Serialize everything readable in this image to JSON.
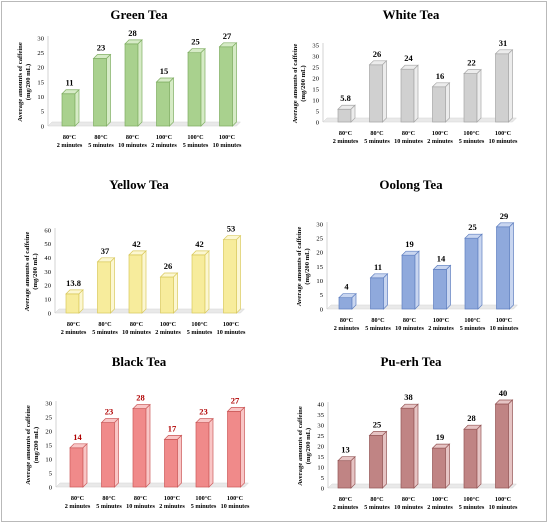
{
  "chart_data": [
    {
      "type": "bar",
      "title": "Green Tea",
      "ylabel": "Average amounts of caffeine (mg/200 mL)",
      "categories": [
        [
          "80°C",
          "2 minutes"
        ],
        [
          "80°C",
          "5 minutes"
        ],
        [
          "80°C",
          "10 minutes"
        ],
        [
          "100°C",
          "2 minutes"
        ],
        [
          "100°C",
          "5 minutes"
        ],
        [
          "100°C",
          "10 minutes"
        ]
      ],
      "values": [
        11,
        23,
        28,
        15,
        25,
        27
      ],
      "labels": [
        "11",
        "23",
        "28",
        "15",
        "25",
        "27"
      ],
      "ylim": [
        0,
        30
      ],
      "yticks": [
        0,
        5,
        10,
        15,
        20,
        25,
        30
      ],
      "color": "#a9d18e",
      "dark": "#7fae62",
      "light": "#d6ebc6",
      "label_color": "#000000"
    },
    {
      "type": "bar",
      "title": "White Tea",
      "ylabel": "Average amounts of caffeine (mg/200 mL)",
      "categories": [
        [
          "80°C",
          "2 minutes"
        ],
        [
          "80°C",
          "5 minutes"
        ],
        [
          "80°C",
          "10 minutes"
        ],
        [
          "100°C",
          "2 minutes"
        ],
        [
          "100°C",
          "5 minutes"
        ],
        [
          "100°C",
          "10 minutes"
        ]
      ],
      "values": [
        5.8,
        26,
        24,
        16,
        22,
        31
      ],
      "labels": [
        "5.8",
        "26",
        "24",
        "16",
        "22",
        "31"
      ],
      "ylim": [
        0,
        35
      ],
      "yticks": [
        0,
        5,
        10,
        15,
        20,
        25,
        30,
        35
      ],
      "color": "#d0d0d0",
      "dark": "#a6a6a6",
      "light": "#ececec",
      "label_color": "#000000"
    },
    {
      "type": "bar",
      "title": "Yellow Tea",
      "ylabel": "Average amounts of caffeine (mg/200 mL)",
      "categories": [
        [
          "80°C",
          "2 minutes"
        ],
        [
          "80°C",
          "5 minutes"
        ],
        [
          "80°C",
          "10 minutes"
        ],
        [
          "100°C",
          "2 minutes"
        ],
        [
          "100°C",
          "5 minutes"
        ],
        [
          "100°C",
          "10 minutes"
        ]
      ],
      "values": [
        13.8,
        37,
        42,
        26,
        42,
        53
      ],
      "labels": [
        "13.8",
        "37",
        "42",
        "26",
        "42",
        "53"
      ],
      "ylim": [
        0,
        60
      ],
      "yticks": [
        0,
        10,
        20,
        30,
        40,
        50,
        60
      ],
      "color": "#f7ec9c",
      "dark": "#d9c95c",
      "light": "#fcf7d2",
      "label_color": "#000000"
    },
    {
      "type": "bar",
      "title": "Oolong Tea",
      "ylabel": "Average amounts of caffeine (mg/200 mL)",
      "categories": [
        [
          "80°C",
          "2 minutes"
        ],
        [
          "80°C",
          "5 minutes"
        ],
        [
          "80°C",
          "10 minutes"
        ],
        [
          "100°C",
          "2 minutes"
        ],
        [
          "100°C",
          "5 minutes"
        ],
        [
          "100°C",
          "10 minutes"
        ]
      ],
      "values": [
        4,
        11,
        19,
        14,
        25,
        29
      ],
      "labels": [
        "4",
        "11",
        "19",
        "14",
        "25",
        "29"
      ],
      "ylim": [
        0,
        30
      ],
      "yticks": [
        0,
        5,
        10,
        15,
        20,
        25,
        30
      ],
      "color": "#8fa9dc",
      "dark": "#5f7fc0",
      "light": "#c9d6f0",
      "label_color": "#000000"
    },
    {
      "type": "bar",
      "title": "Black Tea",
      "ylabel": "Average amounts of caffeine (mg/200 mL)",
      "categories": [
        [
          "80°C",
          "2 minutes"
        ],
        [
          "80°C",
          "5 minutes"
        ],
        [
          "80°C",
          "10 minutes"
        ],
        [
          "100°C",
          "2 minutes"
        ],
        [
          "100°C",
          "5 minutes"
        ],
        [
          "100°C",
          "10 minutes"
        ]
      ],
      "values": [
        14,
        23,
        28,
        17,
        23,
        27
      ],
      "labels": [
        "14",
        "23",
        "28",
        "17",
        "23",
        "27"
      ],
      "ylim": [
        0,
        30
      ],
      "yticks": [
        0,
        5,
        10,
        15,
        20,
        25,
        30
      ],
      "color": "#f08a8a",
      "dark": "#cc5a5a",
      "light": "#f9c6c6",
      "label_color": "#b00000"
    },
    {
      "type": "bar",
      "title": "Pu-erh Tea",
      "ylabel": "Average amounts of caffeine (mg/200 mL)",
      "categories": [
        [
          "80°C",
          "2 minutes"
        ],
        [
          "80°C",
          "5 minutes"
        ],
        [
          "80°C",
          "10 minutes"
        ],
        [
          "100°C",
          "2 minutes"
        ],
        [
          "100°C",
          "5 minutes"
        ],
        [
          "100°C",
          "10 minutes"
        ]
      ],
      "values": [
        13,
        25,
        38,
        19,
        28,
        40
      ],
      "labels": [
        "13",
        "25",
        "38",
        "19",
        "28",
        "40"
      ],
      "ylim": [
        0,
        40
      ],
      "yticks": [
        0,
        5,
        10,
        15,
        20,
        25,
        30,
        35,
        40
      ],
      "color": "#c08484",
      "dark": "#955656",
      "light": "#e6c4c4",
      "label_color": "#000000"
    }
  ]
}
